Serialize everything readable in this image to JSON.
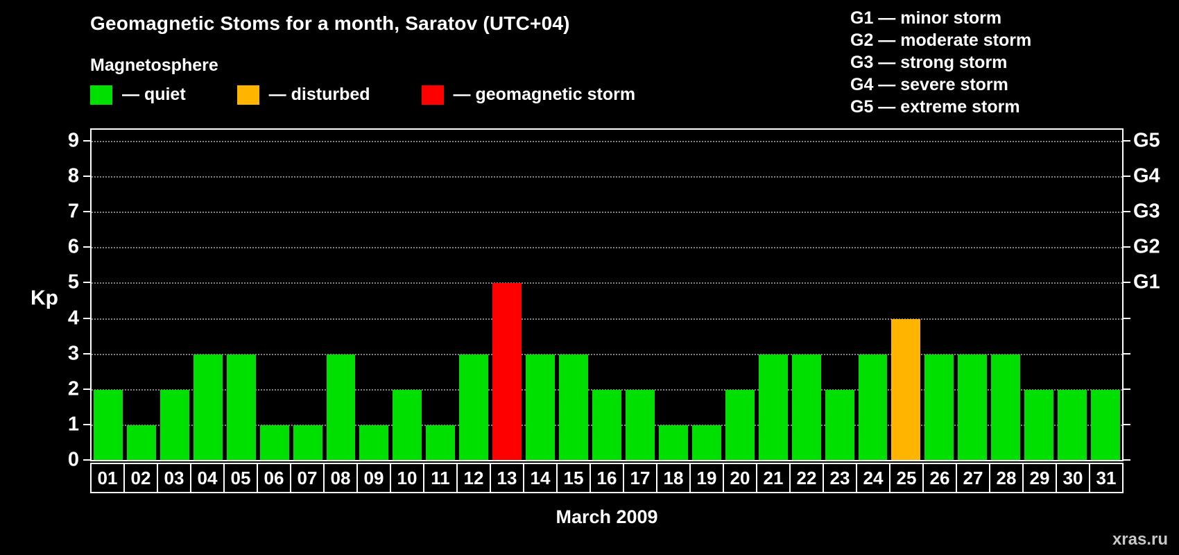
{
  "title": "Geomagnetic Stoms for a month, Saratov (UTC+04)",
  "legend": {
    "heading": "Magnetosphere",
    "items": [
      {
        "name": "quiet",
        "label": "— quiet",
        "color": "#00e000"
      },
      {
        "name": "disturbed",
        "label": "— disturbed",
        "color": "#ffb400"
      },
      {
        "name": "storm",
        "label": "— geomagnetic storm",
        "color": "#ff0000"
      }
    ]
  },
  "storm_scale": {
    "lines": [
      "G1 — minor storm",
      "G2 — moderate storm",
      "G3 — strong storm",
      "G4 — severe storm",
      "G5 — extreme storm"
    ]
  },
  "watermark": "xras.ru",
  "chart_data": {
    "type": "bar",
    "title": "Geomagnetic Stoms for a month, Saratov (UTC+04)",
    "xlabel": "March 2009",
    "ylabel": "Kp",
    "ylim": [
      0,
      9
    ],
    "grid": "dotted-horizontal",
    "legend_position": "top",
    "categories": [
      "01",
      "02",
      "03",
      "04",
      "05",
      "06",
      "07",
      "08",
      "09",
      "10",
      "11",
      "12",
      "13",
      "14",
      "15",
      "16",
      "17",
      "18",
      "19",
      "20",
      "21",
      "22",
      "23",
      "24",
      "25",
      "26",
      "27",
      "28",
      "29",
      "30",
      "31"
    ],
    "values": [
      2,
      1,
      2,
      3,
      3,
      1,
      1,
      3,
      1,
      2,
      1,
      3,
      5,
      3,
      3,
      2,
      2,
      1,
      1,
      2,
      3,
      3,
      2,
      3,
      4,
      3,
      3,
      3,
      2,
      2,
      2
    ],
    "statuses": [
      "quiet",
      "quiet",
      "quiet",
      "quiet",
      "quiet",
      "quiet",
      "quiet",
      "quiet",
      "quiet",
      "quiet",
      "quiet",
      "quiet",
      "storm",
      "quiet",
      "quiet",
      "quiet",
      "quiet",
      "quiet",
      "quiet",
      "quiet",
      "quiet",
      "quiet",
      "quiet",
      "quiet",
      "disturbed",
      "quiet",
      "quiet",
      "quiet",
      "quiet",
      "quiet",
      "quiet"
    ],
    "colors": {
      "quiet": "#00e000",
      "disturbed": "#ffb400",
      "storm": "#ff0000"
    },
    "left_axis_ticks": [
      0,
      1,
      2,
      3,
      4,
      5,
      6,
      7,
      8,
      9
    ],
    "right_axis_labels": [
      {
        "value": 5,
        "label": "G1"
      },
      {
        "value": 6,
        "label": "G2"
      },
      {
        "value": 7,
        "label": "G3"
      },
      {
        "value": 8,
        "label": "G4"
      },
      {
        "value": 9,
        "label": "G5"
      }
    ]
  }
}
